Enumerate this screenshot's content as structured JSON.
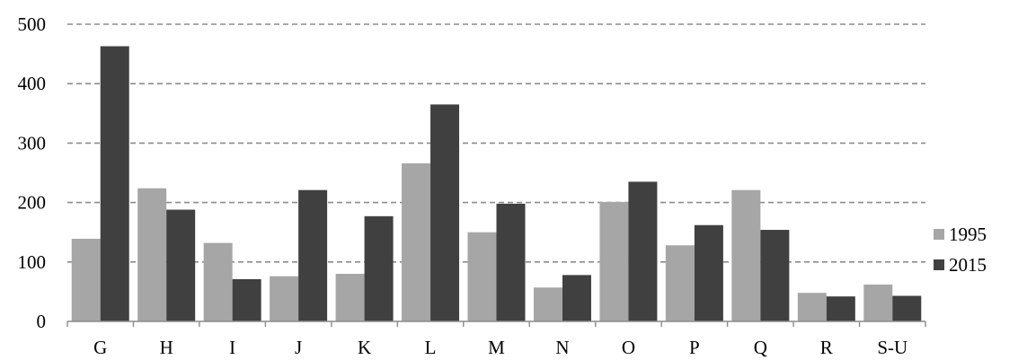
{
  "chart_data": {
    "type": "bar",
    "title": "",
    "xlabel": "",
    "ylabel": "",
    "categories": [
      "G",
      "H",
      "I",
      "J",
      "K",
      "L",
      "M",
      "N",
      "O",
      "P",
      "Q",
      "R",
      "S-U"
    ],
    "series": [
      {
        "name": "1995",
        "color": "#a6a6a6",
        "values": [
          139,
          224,
          132,
          76,
          80,
          266,
          150,
          57,
          201,
          128,
          221,
          48,
          62
        ]
      },
      {
        "name": "2015",
        "color": "#404040",
        "values": [
          463,
          188,
          71,
          221,
          177,
          365,
          198,
          78,
          235,
          162,
          154,
          42,
          43
        ]
      }
    ],
    "ylim": [
      0,
      500
    ],
    "yticks": [
      "0",
      "100",
      "200",
      "300",
      "400",
      "500"
    ],
    "grid": true,
    "legend_position": "right"
  }
}
